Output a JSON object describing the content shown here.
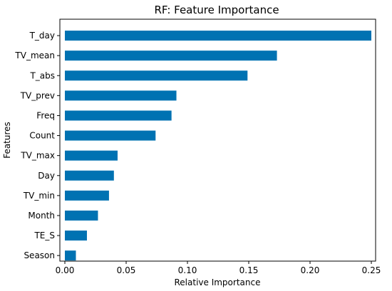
{
  "chart_data": {
    "type": "bar",
    "orientation": "horizontal",
    "title": "RF: Feature Importance",
    "xlabel": "Relative Importance",
    "ylabel": "Features",
    "categories": [
      "T_day",
      "TV_mean",
      "T_abs",
      "TV_prev",
      "Freq",
      "Count",
      "TV_max",
      "Day",
      "TV_min",
      "Month",
      "TE_S",
      "Season"
    ],
    "values": [
      0.25,
      0.173,
      0.149,
      0.091,
      0.087,
      0.074,
      0.043,
      0.04,
      0.036,
      0.027,
      0.018,
      0.009
    ],
    "xlim": [
      0,
      0.262
    ],
    "xticks": [
      0.0,
      0.05,
      0.1,
      0.15,
      0.2,
      0.25
    ],
    "xtick_labels": [
      "0.00",
      "0.05",
      "0.10",
      "0.15",
      "0.20",
      "0.25"
    ],
    "grid": false,
    "legend": "none",
    "bar_color": "#0072B2"
  }
}
